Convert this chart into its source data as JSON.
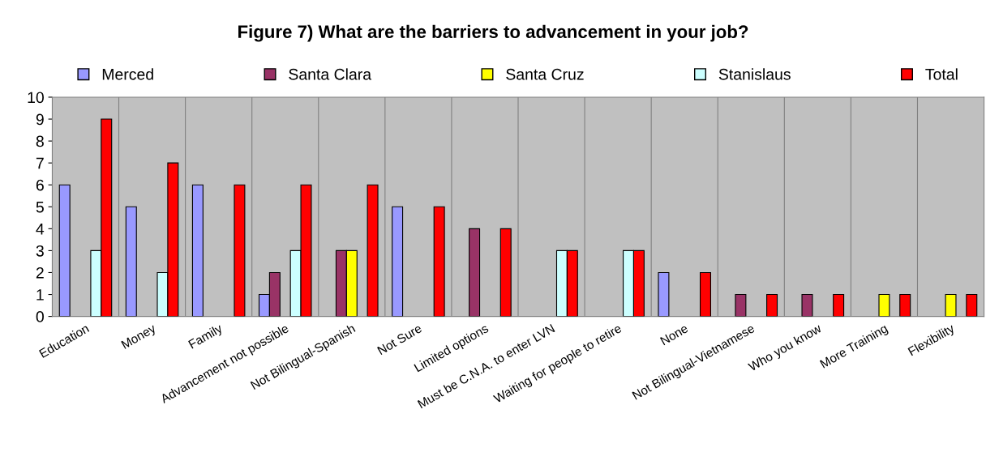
{
  "chart_data": {
    "type": "bar",
    "title": "Figure 7) What are the barriers to advancement in your job?",
    "categories": [
      "Education",
      "Money",
      "Family",
      "Advancement not possible",
      "Not Bilingual-Spanish",
      "Not Sure",
      "Limited options",
      "Must be C.N.A. to enter LVN",
      "Waiting for people to retire",
      "None",
      "Not Bilingual-Vietnamese",
      "Who you know",
      "More Training",
      "Flexibility"
    ],
    "series": [
      {
        "name": "Merced",
        "color": "#9999ff",
        "values": [
          6,
          5,
          6,
          1,
          null,
          5,
          null,
          null,
          null,
          2,
          null,
          null,
          null,
          null
        ]
      },
      {
        "name": "Santa Clara",
        "color": "#993366",
        "values": [
          null,
          null,
          null,
          2,
          3,
          null,
          4,
          null,
          null,
          null,
          1,
          1,
          null,
          null
        ]
      },
      {
        "name": "Santa Cruz",
        "color": "#ffff00",
        "values": [
          null,
          null,
          null,
          null,
          3,
          null,
          null,
          null,
          null,
          null,
          null,
          null,
          1,
          1
        ]
      },
      {
        "name": "Stanislaus",
        "color": "#ccffff",
        "values": [
          3,
          2,
          null,
          3,
          null,
          null,
          null,
          3,
          3,
          null,
          null,
          null,
          null,
          null
        ]
      },
      {
        "name": "Total",
        "color": "#ff0000",
        "values": [
          9,
          7,
          6,
          6,
          6,
          5,
          4,
          3,
          3,
          2,
          1,
          1,
          1,
          1
        ]
      }
    ],
    "ylim": [
      0,
      10
    ],
    "yticks": [
      0,
      1,
      2,
      3,
      4,
      5,
      6,
      7,
      8,
      9,
      10
    ],
    "grid": "x",
    "legend": "top"
  }
}
